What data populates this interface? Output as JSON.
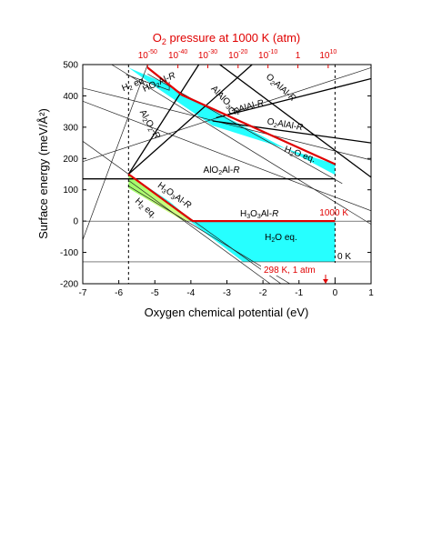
{
  "chart_data": {
    "type": "line",
    "title": "",
    "xlabel": "Oxygen chemical potential (eV)",
    "ylabel": "Surface energy (meV/Å²)",
    "top_axis": {
      "label_prefix": "O",
      "label_sub": "2",
      "label_suffix": " pressure at 1000 K (atm)",
      "ticks": [
        {
          "exp": "-50",
          "x": -5.2
        },
        {
          "exp": "-40",
          "x": -4.36
        },
        {
          "exp": "-30",
          "x": -3.53
        },
        {
          "exp": "-20",
          "x": -2.69
        },
        {
          "exp": "-10",
          "x": -1.86
        },
        {
          "exp": null,
          "text": "1",
          "x": -1.03
        },
        {
          "exp": "10",
          "x": -0.19
        }
      ],
      "tick_base": "10"
    },
    "xlim": [
      -7,
      1
    ],
    "ylim": [
      -200,
      500
    ],
    "xticks": [
      -7,
      -6,
      -5,
      -4,
      -3,
      -2,
      -1,
      0,
      1
    ],
    "yticks": [
      -200,
      -100,
      0,
      100,
      200,
      300,
      400,
      500
    ],
    "vlines": [
      -5.73,
      0
    ],
    "hlines": [
      0,
      -130
    ],
    "regions": [
      {
        "name": "upper-h2o",
        "color": "#00ffff",
        "points": [
          [
            -5.73,
            490
          ],
          [
            -4.7,
            440
          ],
          [
            -4.13,
            400
          ],
          [
            0,
            148
          ],
          [
            0,
            182
          ],
          [
            -3.4,
            305
          ],
          [
            -5.0,
            430
          ]
        ]
      },
      {
        "name": "lower-h2o",
        "color": "#00ffff",
        "points": [
          [
            -5.73,
            150
          ],
          [
            -4.6,
            63
          ],
          [
            -3.95,
            0
          ],
          [
            0,
            0
          ],
          [
            0,
            -130
          ],
          [
            -2.55,
            -130
          ]
        ]
      },
      {
        "name": "lower-green",
        "color": "#7fff3a",
        "points": [
          [
            -5.73,
            150
          ],
          [
            -5.73,
            105
          ],
          [
            -4.2,
            0
          ],
          [
            -3.9,
            0
          ]
        ]
      }
    ],
    "lines": [
      {
        "name": "thin-1",
        "color": "#222222",
        "width": 0.7,
        "points": [
          [
            -7,
            425
          ],
          [
            1,
            195
          ]
        ]
      },
      {
        "name": "thin-2",
        "color": "#222222",
        "width": 0.7,
        "points": [
          [
            -7,
            383
          ],
          [
            1,
            33
          ]
        ]
      },
      {
        "name": "thin-3",
        "color": "#222222",
        "width": 0.7,
        "points": [
          [
            -7,
            255
          ],
          [
            -1.5,
            -200
          ]
        ]
      },
      {
        "name": "thin-4",
        "color": "#222222",
        "width": 0.7,
        "points": [
          [
            -7,
            190
          ],
          [
            1,
            490
          ]
        ]
      },
      {
        "name": "thin-5",
        "color": "#222222",
        "width": 0.7,
        "points": [
          [
            -7,
            -60
          ],
          [
            -5.2,
            500
          ]
        ]
      },
      {
        "name": "thin-6",
        "color": "#222222",
        "width": 0.7,
        "points": [
          [
            -6.2,
            500
          ],
          [
            1,
            -10
          ]
        ]
      },
      {
        "name": "thin-7",
        "color": "#222222",
        "width": 0.7,
        "points": [
          [
            -5.73,
            112
          ],
          [
            -1.25,
            -200
          ]
        ]
      },
      {
        "name": "thin-8",
        "color": "#222222",
        "width": 0.7,
        "points": [
          [
            -5.73,
            130
          ],
          [
            -1.8,
            -200
          ]
        ]
      },
      {
        "name": "thin-9",
        "color": "#222222",
        "width": 0.7,
        "points": [
          [
            -5.2,
            470
          ],
          [
            0.2,
            120
          ]
        ]
      },
      {
        "name": "h2-top",
        "color": "#222222",
        "width": 0.7,
        "points": [
          [
            -5.8,
            468
          ],
          [
            -4.6,
            418
          ],
          [
            -4.6,
            445
          ]
        ]
      },
      {
        "name": "AlO2Al-R",
        "color": "#000000",
        "width": 1.3,
        "points": [
          [
            -7,
            135
          ],
          [
            0,
            135
          ]
        ]
      },
      {
        "name": "Al2O2-R",
        "color": "#000000",
        "width": 1.3,
        "points": [
          [
            -5.73,
            150
          ],
          [
            -3.78,
            500
          ]
        ]
      },
      {
        "name": "AlAlO3-R",
        "color": "#000000",
        "width": 1.3,
        "points": [
          [
            -5.73,
            150
          ],
          [
            -2.3,
            500
          ]
        ]
      },
      {
        "name": "O2AlAl-R",
        "color": "#000000",
        "width": 1.3,
        "points": [
          [
            -3.2,
            500
          ],
          [
            1,
            140
          ]
        ]
      },
      {
        "name": "O1AlAl-R",
        "color": "#000000",
        "width": 1.3,
        "points": [
          [
            -3.3,
            330
          ],
          [
            1,
            455
          ]
        ]
      },
      {
        "name": "O2AlAl-R-2",
        "color": "#000000",
        "width": 1.3,
        "points": [
          [
            -3.4,
            320
          ],
          [
            1,
            250
          ]
        ]
      },
      {
        "name": "HO2Al-R-red",
        "color": "#e00000",
        "width": 2.2,
        "points": [
          [
            -5.2,
            490
          ],
          [
            -4.25,
            403
          ],
          [
            0,
            182
          ]
        ]
      },
      {
        "name": "H3O3Al-R-red",
        "color": "#e00000",
        "width": 2.2,
        "points": [
          [
            -5.73,
            150
          ],
          [
            -3.95,
            0
          ],
          [
            0,
            0
          ]
        ]
      }
    ],
    "labels": [
      {
        "text": "H",
        "sub": "2",
        "suffix": " eq.",
        "x": -5.55,
        "y": 430,
        "rotate": 22,
        "color": "#000000"
      },
      {
        "text": "HO",
        "sub": "2",
        "suffix": "Al-R",
        "x": -4.85,
        "y": 436,
        "rotate": 25,
        "color": "#000000"
      },
      {
        "text": "Al",
        "sub": "2",
        "mid": "O",
        "sub2": "2",
        "suffix": "-R",
        "x": -5.2,
        "y": 305,
        "rotate": -60,
        "color": "#000000"
      },
      {
        "text": "AlAlO",
        "sub": "3",
        "suffix": "-R",
        "x": -3.1,
        "y": 380,
        "rotate": -46,
        "color": "#000000"
      },
      {
        "text": "O",
        "sub": "2",
        "suffix": "AlAl-R",
        "x": -1.55,
        "y": 420,
        "rotate": -42,
        "color": "#000000"
      },
      {
        "text": "O",
        "sub": "1",
        "suffix": "AlAl-R",
        "x": -2.45,
        "y": 355,
        "rotate": 15,
        "color": "#000000"
      },
      {
        "text": "O",
        "sub": "2",
        "suffix": "AlAl-R",
        "x": -1.4,
        "y": 300,
        "rotate": -10,
        "color": "#000000"
      },
      {
        "text": "H",
        "sub": "2",
        "suffix": "O eq.",
        "x": -1.0,
        "y": 205,
        "rotate": -20,
        "color": "#000000"
      },
      {
        "text": "AlO",
        "sub": "2",
        "suffix": "Al-R",
        "x": -3.15,
        "y": 155,
        "rotate": 0,
        "color": "#000000"
      },
      {
        "text": "H",
        "sub": "3",
        "mid": "O",
        "sub2": "3",
        "suffix": "Al-R",
        "x": -4.5,
        "y": 75,
        "rotate": -35,
        "color": "#000000"
      },
      {
        "text": "H",
        "sub": "2",
        "suffix": " eq.",
        "x": -5.3,
        "y": 35,
        "rotate": -42,
        "color": "#000000"
      },
      {
        "text": "H",
        "sub": "3",
        "mid": "O",
        "sub2": "3",
        "suffix": "Al-R",
        "x": -2.1,
        "y": 15,
        "rotate": 0,
        "color": "#000000"
      },
      {
        "text": "H",
        "sub": "2",
        "suffix": "O eq.",
        "x": -1.5,
        "y": -60,
        "rotate": 0,
        "color": "#000000"
      }
    ],
    "annotations": {
      "temp_1000": "1000 K",
      "temp_0": "0 K",
      "condition": "298 K, 1 atm"
    },
    "grid": false,
    "legend": "none"
  }
}
